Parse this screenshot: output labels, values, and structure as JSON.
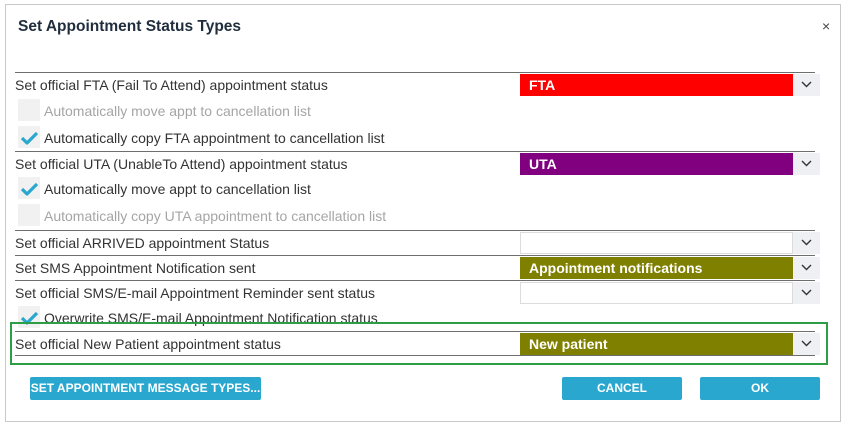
{
  "dialog": {
    "title": "Set Appointment Status Types",
    "close_glyph": "×"
  },
  "rows": {
    "fta": {
      "label": "Set official FTA (Fail To Attend) appointment status",
      "value": "FTA",
      "color": "#ff0000"
    },
    "fta_move": {
      "label": "Automatically move appt to cancellation list",
      "checked": false,
      "enabled": false
    },
    "fta_copy": {
      "label": "Automatically copy FTA appointment to cancellation list",
      "checked": true,
      "enabled": true
    },
    "uta": {
      "label": "Set official UTA (UnableTo Attend) appointment status",
      "value": "UTA",
      "color": "#800080"
    },
    "uta_move": {
      "label": "Automatically move appt to cancellation list",
      "checked": true,
      "enabled": true
    },
    "uta_copy": {
      "label": "Automatically copy UTA appointment to cancellation list",
      "checked": false,
      "enabled": false
    },
    "arrived": {
      "label": "Set official ARRIVED appointment Status",
      "value": ""
    },
    "sms_sent": {
      "label": "Set SMS Appointment Notification sent",
      "value": "Appointment notifications",
      "color": "#808000"
    },
    "reminder": {
      "label": "Set official SMS/E-mail Appointment Reminder sent status",
      "value": ""
    },
    "overwrite": {
      "label": "Overwrite SMS/E-mail Appointment Notification status",
      "checked": true,
      "enabled": true
    },
    "new_patient": {
      "label": "Set official New Patient appointment status",
      "value": "New patient",
      "color": "#808000"
    }
  },
  "buttons": {
    "message_types": "SET APPOINTMENT MESSAGE TYPES...",
    "cancel": "CANCEL",
    "ok": "OK"
  },
  "icons": {
    "dropdown": "chevron-down-icon",
    "check": "checkmark-icon",
    "close": "close-icon"
  },
  "colors": {
    "button_bg": "#2aa7cf",
    "checkmark": "#2aa7cf",
    "highlight_border": "#2e9e46"
  }
}
